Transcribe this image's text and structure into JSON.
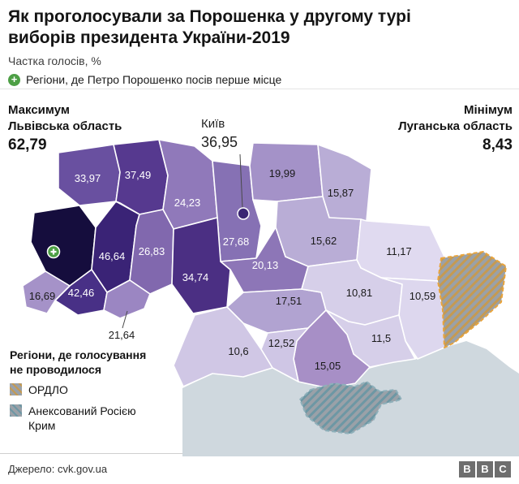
{
  "header": {
    "title_lines": [
      "Як проголосували за Порошенка у другому турі",
      "виборів президента України-2019"
    ],
    "subtitle": "Частка голосів, %",
    "first_place_legend": "Регіони, де Петро Порошенко посів перше місце"
  },
  "map": {
    "colors": {
      "sea": "#cfd8de",
      "region_border": "#ffffff",
      "zone_base": "#9aa1a8",
      "ordlo_hatch": "#c59a52",
      "ordlo_border": "#e9a43c",
      "crimea_hatch": "#6d97a4",
      "crimea_border": "#8fb0ba",
      "kyiv_dot": "#3a2573",
      "marker_green": "#4d9f45",
      "leader_line": "#4a4a4a"
    },
    "callouts": {
      "max": {
        "title": "Максимум",
        "region": "Львівська область",
        "value": "62,79"
      },
      "kyiv": {
        "title": "Київ",
        "value": "36,95"
      },
      "min": {
        "title": "Мінімум",
        "region": "Луганська область",
        "value": "8,43"
      }
    },
    "no_vote": {
      "title": "Регіони, де голосування\nне проводилося",
      "items": [
        {
          "label": "ОРДЛО",
          "type": "ordlo"
        },
        {
          "label": "Анексований Росією Крим",
          "type": "crimea"
        }
      ]
    },
    "regions": [
      {
        "id": "lviv",
        "value": "",
        "fill": "#150d3d",
        "text": "#ffffff"
      },
      {
        "id": "volyn",
        "value": "33,97",
        "fill": "#6950a0",
        "text": "#ffffff"
      },
      {
        "id": "rivne",
        "value": "37,49",
        "fill": "#56398f",
        "text": "#ffffff"
      },
      {
        "id": "zhytomyr",
        "value": "24,23",
        "fill": "#9079ba",
        "text": "#ffffff"
      },
      {
        "id": "kyiv_oblast",
        "value": "27,68",
        "fill": "#8671b4",
        "text": "#ffffff"
      },
      {
        "id": "chernihiv",
        "value": "19,99",
        "fill": "#a492c8",
        "text": "#1a1a1a"
      },
      {
        "id": "sumy",
        "value": "15,87",
        "fill": "#b9add6",
        "text": "#1a1a1a"
      },
      {
        "id": "ternopil",
        "value": "46,64",
        "fill": "#3a2376",
        "text": "#ffffff"
      },
      {
        "id": "khmelnytskyi",
        "value": "26,83",
        "fill": "#8168ae",
        "text": "#ffffff"
      },
      {
        "id": "vinnytsia",
        "value": "34,74",
        "fill": "#4b2f83",
        "text": "#ffffff"
      },
      {
        "id": "ivano_frankivsk",
        "value": "42,46",
        "fill": "#483086",
        "text": "#ffffff"
      },
      {
        "id": "zakarpattia",
        "value": "16,69",
        "fill": "#a592c8",
        "text": "#1a1a1a"
      },
      {
        "id": "chernivtsi",
        "value": "21,64",
        "fill": "#9b86c2",
        "text": "#1a1a1a"
      },
      {
        "id": "cherkasy",
        "value": "20,13",
        "fill": "#8d76b7",
        "text": "#ffffff"
      },
      {
        "id": "poltava",
        "value": "15,62",
        "fill": "#b9add6",
        "text": "#1a1a1a"
      },
      {
        "id": "kharkiv",
        "value": "11,17",
        "fill": "#e0daf0",
        "text": "#1a1a1a"
      },
      {
        "id": "kirovohrad",
        "value": "17,51",
        "fill": "#b1a3d1",
        "text": "#1a1a1a"
      },
      {
        "id": "dnipro",
        "value": "10,81",
        "fill": "#d6cfe9",
        "text": "#1a1a1a"
      },
      {
        "id": "donetsk",
        "value": "10,59",
        "fill": "#ddd7ee",
        "text": "#1a1a1a"
      },
      {
        "id": "zaporizhzhia",
        "value": "11,5",
        "fill": "#d6cfe9",
        "text": "#1a1a1a"
      },
      {
        "id": "kherson",
        "value": "15,05",
        "fill": "#a78fc6",
        "text": "#1a1a1a"
      },
      {
        "id": "mykolaiv",
        "value": "12,52",
        "fill": "#cfc6e5",
        "text": "#1a1a1a"
      },
      {
        "id": "odesa",
        "value": "10,6",
        "fill": "#d0c7e5",
        "text": "#1a1a1a"
      },
      {
        "id": "ordlo",
        "value": "",
        "pattern": "ordlo"
      },
      {
        "id": "crimea",
        "value": "",
        "pattern": "crimea"
      }
    ]
  },
  "footer": {
    "source": "Джерело: cvk.gov.ua",
    "logo_letters": [
      "B",
      "B",
      "C"
    ],
    "logo_color": "#6e6e6e"
  },
  "chart_data": {
    "type": "heatmap",
    "title": "Як проголосували за Порошенка у другому турі виборів президента України-2019",
    "value_label": "Частка голосів, %",
    "legend": "Регіони, де Петро Порошенко посів перше місце",
    "max": {
      "region": "Львівська область",
      "value": 62.79
    },
    "min": {
      "region": "Луганська область",
      "value": 8.43
    },
    "kyiv_city": 36.95,
    "values_percent": [
      62.79,
      46.64,
      42.46,
      37.49,
      36.95,
      34.74,
      33.97,
      27.68,
      26.83,
      24.23,
      21.64,
      20.13,
      19.99,
      17.51,
      16.69,
      15.87,
      15.62,
      15.05,
      12.52,
      11.5,
      11.17,
      10.81,
      10.6,
      10.59,
      8.43
    ],
    "no_vote_zones": [
      "ОРДЛО",
      "Анексований Росією Крим"
    ],
    "source": "Джерело: cvk.gov.ua"
  }
}
